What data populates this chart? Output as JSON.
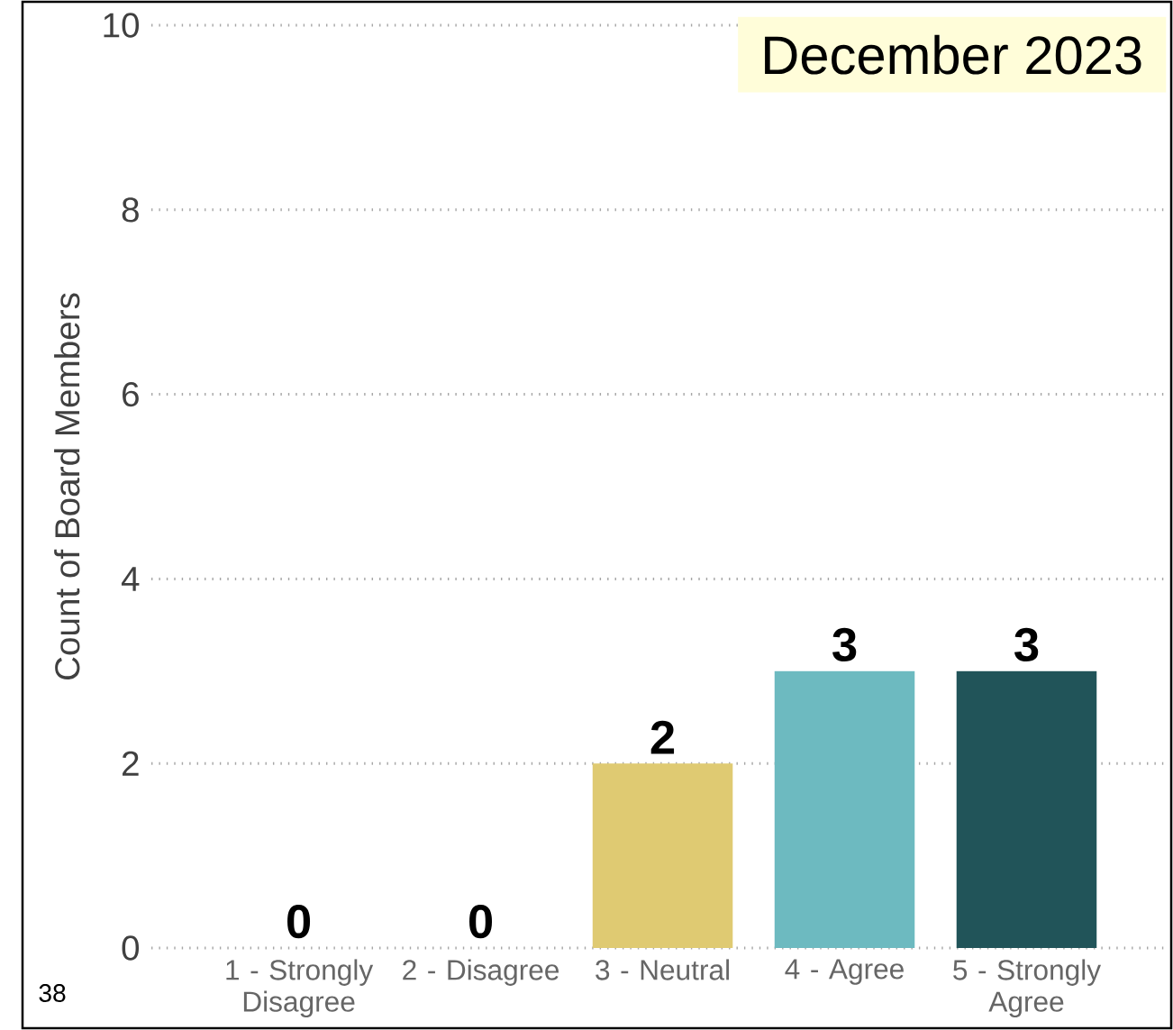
{
  "chart_data": {
    "type": "bar",
    "title": "December 2023",
    "ylabel": "Count of Board Members",
    "categories": [
      "1 - Strongly Disagree",
      "2 - Disagree",
      "3 - Neutral",
      "4 - Agree",
      "5 - Strongly Agree"
    ],
    "values": [
      0,
      0,
      2,
      3,
      3
    ],
    "colors": [
      "#a0a0a0",
      "#a0a0a0",
      "#dfca72",
      "#6dbac0",
      "#215459"
    ],
    "ylim": [
      0,
      10
    ],
    "yticks": [
      0,
      2,
      4,
      6,
      8,
      10
    ],
    "grid": "y",
    "data_labels": true,
    "annotations": [
      "38"
    ]
  }
}
